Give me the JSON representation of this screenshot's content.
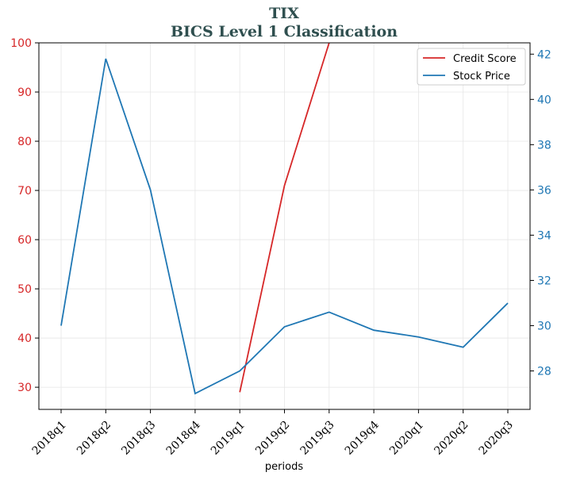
{
  "chart_data": {
    "type": "line",
    "title": "TIX",
    "subtitle": "BICS Level 1 Classification",
    "xlabel": "periods",
    "categories": [
      "2018q1",
      "2018q2",
      "2018q3",
      "2018q4",
      "2019q1",
      "2019q2",
      "2019q3",
      "2019q4",
      "2020q1",
      "2020q2",
      "2020q3"
    ],
    "left_axis": {
      "ylim": [
        25.5,
        100
      ],
      "ticks": [
        30,
        40,
        50,
        60,
        70,
        80,
        90,
        100
      ],
      "color": "#d62728"
    },
    "right_axis": {
      "ylim": [
        26.3,
        42.5
      ],
      "ticks": [
        28,
        30,
        32,
        34,
        36,
        38,
        40,
        42
      ],
      "color": "#1f77b4"
    },
    "grid": true,
    "legend_position": "top-right",
    "series": [
      {
        "name": "Credit Score",
        "axis": "left",
        "color": "#d62728",
        "values": [
          null,
          null,
          null,
          null,
          29,
          71,
          100,
          null,
          null,
          null,
          null
        ]
      },
      {
        "name": "Stock Price",
        "axis": "right",
        "color": "#1f77b4",
        "values": [
          30.0,
          41.8,
          36.0,
          27.0,
          28.0,
          29.95,
          30.6,
          29.8,
          29.5,
          29.05,
          31.0
        ]
      }
    ]
  }
}
